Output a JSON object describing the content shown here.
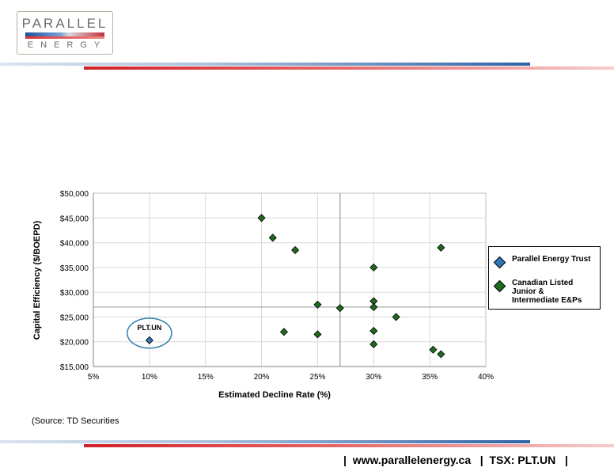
{
  "logo": {
    "top": "PARALLEL",
    "bottom": "ENERGY"
  },
  "source_note": "(Source: TD Securities",
  "footer": {
    "website": "www.parallelenergy.ca",
    "ticker": "TSX: PLT.UN"
  },
  "colors": {
    "plt": "#2e75b6",
    "peers": "#1e6b1e",
    "callout": "#2e7fb0",
    "grid": "#d9d9d9",
    "ref_line": "#999999"
  },
  "chart_data": {
    "type": "scatter",
    "xlabel": "Estimated Decline Rate (%)",
    "ylabel": "Capital Efficiency ($/BOEPD)",
    "xlim": [
      5,
      40
    ],
    "ylim": [
      15000,
      50000
    ],
    "x_ticks": [
      5,
      10,
      15,
      20,
      25,
      30,
      35,
      40
    ],
    "x_tick_labels": [
      "5%",
      "10%",
      "15%",
      "20%",
      "25%",
      "30%",
      "35%",
      "40%"
    ],
    "y_ticks": [
      15000,
      20000,
      25000,
      30000,
      35000,
      40000,
      45000,
      50000
    ],
    "y_tick_labels": [
      "$15,000",
      "$20,000",
      "$25,000",
      "$30,000",
      "$35,000",
      "$40,000",
      "$45,000",
      "$50,000"
    ],
    "grid": true,
    "legend_position": "right",
    "reference_lines": {
      "vertical_x": 27,
      "horizontal_y": 27000
    },
    "annotation": {
      "text": "PLT.UN",
      "x": 10,
      "y": 20300
    },
    "series": [
      {
        "name": "Parallel Energy Trust",
        "points": [
          {
            "x": 10,
            "y": 20300
          }
        ]
      },
      {
        "name": "Canadian Listed Junior & Intermediate E&Ps",
        "points": [
          {
            "x": 20,
            "y": 45000
          },
          {
            "x": 21,
            "y": 41000
          },
          {
            "x": 23,
            "y": 38500
          },
          {
            "x": 36,
            "y": 39000
          },
          {
            "x": 30,
            "y": 35000
          },
          {
            "x": 30,
            "y": 28200
          },
          {
            "x": 25,
            "y": 27500
          },
          {
            "x": 30,
            "y": 27000
          },
          {
            "x": 27,
            "y": 26800
          },
          {
            "x": 32,
            "y": 25000
          },
          {
            "x": 22,
            "y": 22000
          },
          {
            "x": 30,
            "y": 22200
          },
          {
            "x": 25,
            "y": 21500
          },
          {
            "x": 30,
            "y": 19500
          },
          {
            "x": 35.3,
            "y": 18400
          },
          {
            "x": 36,
            "y": 17500
          }
        ]
      }
    ]
  }
}
